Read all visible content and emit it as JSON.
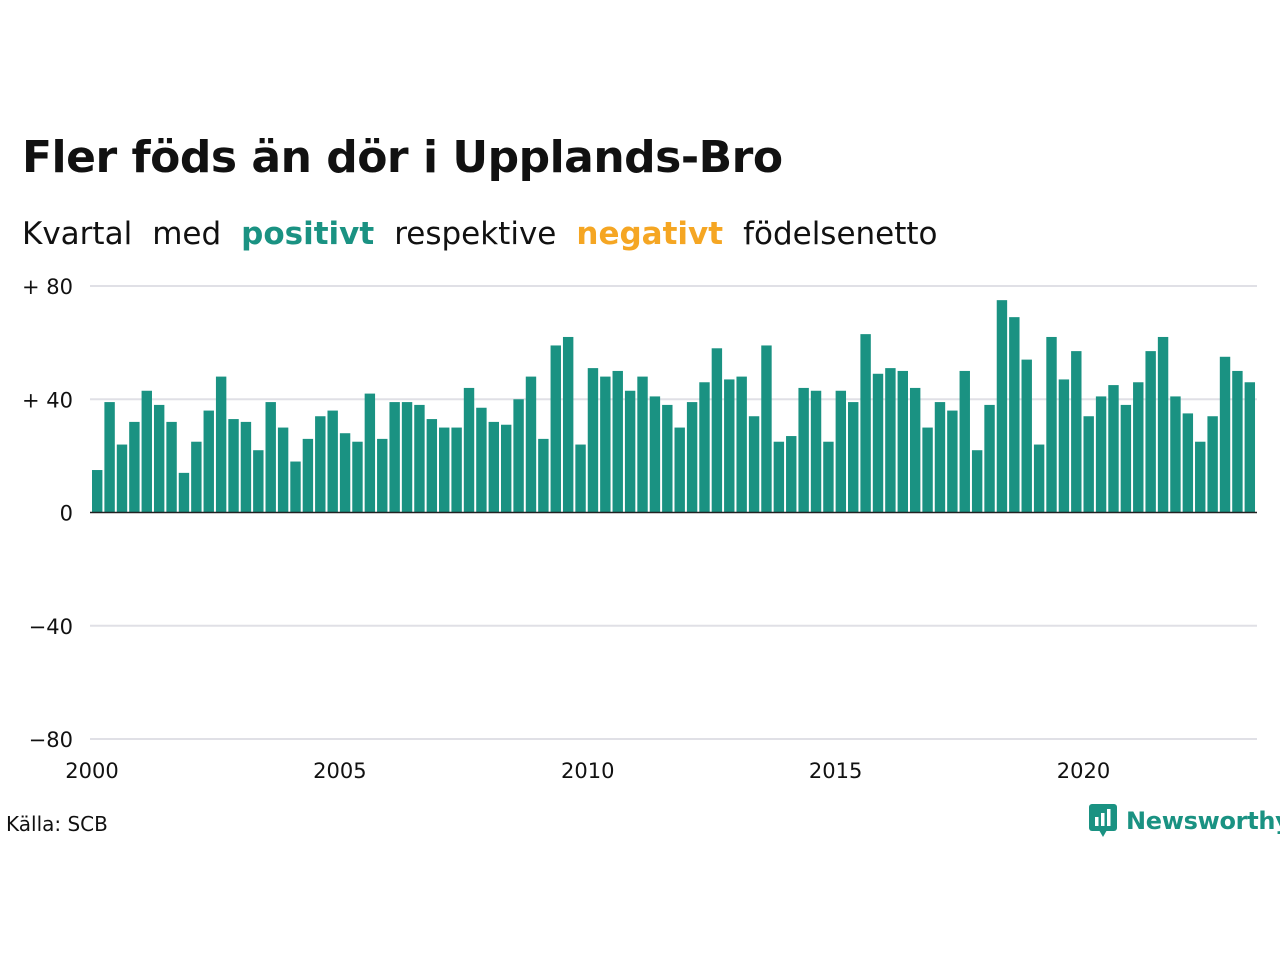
{
  "title": "Fler föds än dör i Upplands-Bro",
  "subtitle": {
    "w1": "Kvartal",
    "w2": "med",
    "positive": "positivt",
    "w3": "respektive",
    "negative": "negativt",
    "w4": "födelsenetto"
  },
  "colors": {
    "positive": "#1a9282",
    "negative": "#f5a623",
    "grid": "#e0e0e6",
    "text": "#111111"
  },
  "source": "Källa: SCB",
  "brand": {
    "name": "Newsworthy",
    "icon": "bar-chart-bubble-icon"
  },
  "chart_data": {
    "type": "bar",
    "title": "Fler föds än dör i Upplands-Bro",
    "xlabel": "",
    "ylabel": "",
    "ylim": [
      -80,
      80
    ],
    "grid": true,
    "legend": "none",
    "y_ticks": [
      {
        "value": 80,
        "label": "+ 80"
      },
      {
        "value": 40,
        "label": "+ 40"
      },
      {
        "value": 0,
        "label": "0"
      },
      {
        "value": -40,
        "label": "−40"
      },
      {
        "value": -80,
        "label": "−80"
      }
    ],
    "x_ticks": [
      {
        "year": 2000,
        "label": "2000"
      },
      {
        "year": 2005,
        "label": "2005"
      },
      {
        "year": 2010,
        "label": "2010"
      },
      {
        "year": 2015,
        "label": "2015"
      },
      {
        "year": 2020,
        "label": "2020"
      }
    ],
    "start_year": 2000,
    "start_quarter": 1,
    "values": [
      15,
      39,
      24,
      32,
      43,
      38,
      32,
      14,
      25,
      36,
      48,
      33,
      32,
      22,
      39,
      30,
      18,
      26,
      34,
      36,
      28,
      25,
      42,
      26,
      39,
      39,
      38,
      33,
      30,
      30,
      44,
      37,
      32,
      31,
      40,
      48,
      26,
      59,
      62,
      24,
      51,
      48,
      50,
      43,
      48,
      41,
      38,
      30,
      39,
      46,
      58,
      47,
      48,
      34,
      59,
      25,
      27,
      44,
      43,
      25,
      43,
      39,
      63,
      49,
      51,
      50,
      44,
      30,
      39,
      36,
      50,
      22,
      38,
      75,
      69,
      54,
      24,
      62,
      47,
      57,
      34,
      41,
      45,
      38,
      46,
      57,
      62,
      41,
      35,
      25,
      34,
      55,
      50,
      46
    ]
  }
}
